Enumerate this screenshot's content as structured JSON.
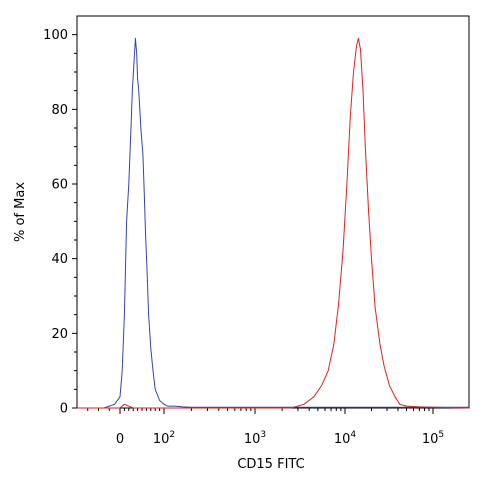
{
  "chart_data": {
    "type": "line",
    "title": "",
    "xlabel": "CD15 FITC",
    "ylabel": "% of Max",
    "x_scale": "biexponential",
    "xlim": [
      -40,
      200000
    ],
    "ylim": [
      0,
      105
    ],
    "y_ticks": [
      "0",
      "20",
      "40",
      "60",
      "80",
      "100"
    ],
    "x_ticks": [
      {
        "value": 0,
        "base": "0",
        "exp": ""
      },
      {
        "value": 100,
        "base": "10",
        "exp": "2"
      },
      {
        "value": 1000,
        "base": "10",
        "exp": "3"
      },
      {
        "value": 10000,
        "base": "10",
        "exp": "4"
      },
      {
        "value": 100000,
        "base": "10",
        "exp": "5"
      }
    ],
    "grid": false,
    "legend": "none",
    "series": [
      {
        "color": "#3344aa",
        "x": [
          -40,
          -15,
          -5,
          0,
          5,
          10,
          15,
          20,
          25,
          28,
          32,
          35,
          38,
          40,
          42,
          45,
          48,
          52,
          55,
          58,
          62,
          65,
          70,
          75,
          80,
          90,
          100,
          110,
          130,
          160,
          200,
          300,
          1000,
          10000,
          100000,
          200000
        ],
        "y": [
          0,
          0,
          1,
          3,
          10,
          25,
          50,
          60,
          75,
          85,
          93,
          99,
          95,
          88,
          86,
          80,
          74,
          68,
          58,
          47,
          35,
          25,
          16,
          10,
          5,
          2,
          1,
          0.5,
          0.5,
          0.3,
          0.2,
          0.2,
          0.2,
          0.2,
          0.2,
          0.2
        ]
      },
      {
        "color": "#dd2222",
        "x": [
          -40,
          0,
          10,
          30,
          100,
          1000,
          2500,
          3500,
          4500,
          5500,
          6500,
          7500,
          8500,
          9500,
          10500,
          11500,
          12500,
          13500,
          14200,
          15000,
          16000,
          17000,
          18500,
          20000,
          22000,
          25000,
          28000,
          32000,
          37000,
          42000,
          50000,
          70000,
          100000,
          200000
        ],
        "y": [
          0,
          0,
          1,
          0,
          0,
          0,
          0,
          1,
          3,
          6,
          10,
          17,
          28,
          42,
          60,
          78,
          90,
          97,
          99,
          96,
          85,
          70,
          53,
          40,
          27,
          17,
          11,
          6,
          3,
          1,
          0.5,
          0.3,
          0.2,
          0
        ]
      }
    ]
  }
}
